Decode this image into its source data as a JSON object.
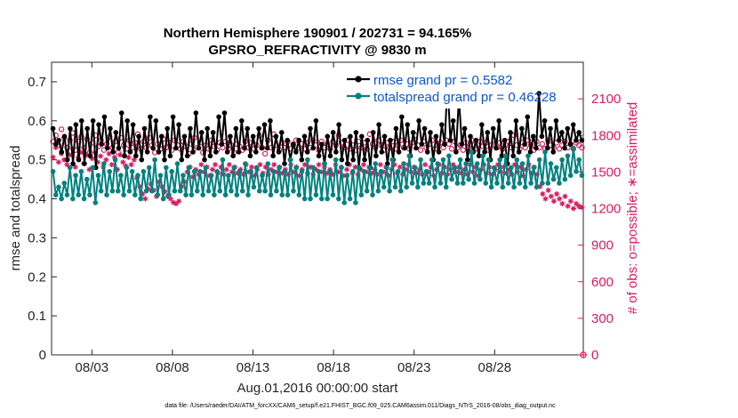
{
  "chart_data": {
    "type": "line",
    "title_line1": "Northern Hemisphere 190901 / 202731 = 94.165%",
    "title_line2": "GPSRO_REFRACTIVITY @ 9830 m",
    "xlabel": "Aug.01,2016 00:00:00 start",
    "ylabel_left": "rmse and totalspread",
    "ylabel_right": "# of obs: o=possible; ∗=assimilated",
    "footnote": "data file: /Users/raeder/DAI/ATM_forcXX/CAM6_setup/f.e21.FHIST_BGC.f09_025.CAM6assim.011/Diags_NTrS_2016-08/obs_diag_output.nc",
    "xlim": [
      0,
      33
    ],
    "ylim_left": [
      0,
      0.75
    ],
    "ylim_right": [
      0,
      2400
    ],
    "x_ticks": [
      {
        "value": 2.5,
        "label": "08/03"
      },
      {
        "value": 7.5,
        "label": "08/08"
      },
      {
        "value": 12.5,
        "label": "08/13"
      },
      {
        "value": 17.5,
        "label": "08/18"
      },
      {
        "value": 22.5,
        "label": "08/23"
      },
      {
        "value": 27.5,
        "label": "08/28"
      }
    ],
    "y_ticks_left": [
      {
        "value": 0,
        "label": "0"
      },
      {
        "value": 0.1,
        "label": "0.1"
      },
      {
        "value": 0.2,
        "label": "0.2"
      },
      {
        "value": 0.3,
        "label": "0.3"
      },
      {
        "value": 0.4,
        "label": "0.4"
      },
      {
        "value": 0.5,
        "label": "0.5"
      },
      {
        "value": 0.6,
        "label": "0.6"
      },
      {
        "value": 0.7,
        "label": "0.7"
      }
    ],
    "y_ticks_right": [
      {
        "value": 0,
        "label": "0"
      },
      {
        "value": 300,
        "label": "300"
      },
      {
        "value": 600,
        "label": "600"
      },
      {
        "value": 900,
        "label": "900"
      },
      {
        "value": 1200,
        "label": "1200"
      },
      {
        "value": 1500,
        "label": "1500"
      },
      {
        "value": 1800,
        "label": "1800"
      },
      {
        "value": 2100,
        "label": "2100"
      }
    ],
    "series": [
      {
        "name": "rmse",
        "legend": "rmse grand pr = 0.5582",
        "color": "#000000",
        "axis": "left",
        "marker": "dot",
        "values": [
          0.58,
          0.54,
          0.55,
          0.52,
          0.56,
          0.5,
          0.58,
          0.49,
          0.59,
          0.5,
          0.6,
          0.49,
          0.58,
          0.51,
          0.6,
          0.48,
          0.59,
          0.54,
          0.61,
          0.53,
          0.58,
          0.52,
          0.57,
          0.53,
          0.62,
          0.51,
          0.6,
          0.52,
          0.59,
          0.51,
          0.56,
          0.5,
          0.58,
          0.52,
          0.61,
          0.53,
          0.6,
          0.52,
          0.56,
          0.5,
          0.58,
          0.51,
          0.61,
          0.53,
          0.59,
          0.5,
          0.56,
          0.51,
          0.58,
          0.52,
          0.62,
          0.53,
          0.57,
          0.5,
          0.58,
          0.51,
          0.57,
          0.52,
          0.61,
          0.54,
          0.62,
          0.52,
          0.56,
          0.51,
          0.58,
          0.52,
          0.6,
          0.53,
          0.58,
          0.51,
          0.56,
          0.52,
          0.58,
          0.53,
          0.59,
          0.53,
          0.6,
          0.51,
          0.56,
          0.52,
          0.57,
          0.49,
          0.55,
          0.5,
          0.54,
          0.52,
          0.55,
          0.5,
          0.56,
          0.52,
          0.58,
          0.53,
          0.6,
          0.51,
          0.54,
          0.49,
          0.56,
          0.51,
          0.57,
          0.52,
          0.59,
          0.5,
          0.55,
          0.49,
          0.56,
          0.5,
          0.57,
          0.48,
          0.56,
          0.5,
          0.55,
          0.48,
          0.57,
          0.51,
          0.59,
          0.52,
          0.56,
          0.49,
          0.55,
          0.5,
          0.58,
          0.52,
          0.61,
          0.53,
          0.59,
          0.51,
          0.57,
          0.53,
          0.6,
          0.54,
          0.58,
          0.52,
          0.57,
          0.5,
          0.56,
          0.52,
          0.59,
          0.54,
          0.7,
          0.55,
          0.6,
          0.52,
          0.66,
          0.54,
          0.58,
          0.5,
          0.56,
          0.52,
          0.55,
          0.51,
          0.59,
          0.52,
          0.57,
          0.5,
          0.58,
          0.53,
          0.6,
          0.51,
          0.55,
          0.49,
          0.57,
          0.51,
          0.6,
          0.52,
          0.58,
          0.54,
          0.61,
          0.52,
          0.56,
          0.53,
          0.67,
          0.56,
          0.6,
          0.53,
          0.58,
          0.52,
          0.6,
          0.55,
          0.57,
          0.53,
          0.58,
          0.54,
          0.59,
          0.55,
          0.57,
          0.55
        ]
      },
      {
        "name": "totalspread",
        "legend": "totalspread grand pr = 0.46228",
        "color": "#00827f",
        "axis": "left",
        "marker": "dot",
        "values": [
          0.47,
          0.41,
          0.43,
          0.4,
          0.44,
          0.41,
          0.48,
          0.4,
          0.46,
          0.41,
          0.47,
          0.4,
          0.45,
          0.41,
          0.48,
          0.39,
          0.46,
          0.42,
          0.49,
          0.41,
          0.47,
          0.42,
          0.5,
          0.42,
          0.46,
          0.41,
          0.48,
          0.42,
          0.47,
          0.41,
          0.46,
          0.4,
          0.47,
          0.42,
          0.48,
          0.42,
          0.5,
          0.41,
          0.46,
          0.4,
          0.48,
          0.41,
          0.47,
          0.42,
          0.49,
          0.42,
          0.46,
          0.41,
          0.48,
          0.41,
          0.47,
          0.42,
          0.47,
          0.41,
          0.48,
          0.42,
          0.46,
          0.41,
          0.47,
          0.42,
          0.5,
          0.41,
          0.46,
          0.42,
          0.48,
          0.41,
          0.47,
          0.42,
          0.49,
          0.41,
          0.47,
          0.43,
          0.48,
          0.42,
          0.46,
          0.42,
          0.49,
          0.41,
          0.47,
          0.42,
          0.48,
          0.41,
          0.47,
          0.41,
          0.5,
          0.42,
          0.48,
          0.41,
          0.47,
          0.4,
          0.5,
          0.4,
          0.48,
          0.41,
          0.47,
          0.4,
          0.49,
          0.4,
          0.47,
          0.41,
          0.5,
          0.4,
          0.48,
          0.39,
          0.46,
          0.4,
          0.47,
          0.39,
          0.48,
          0.41,
          0.47,
          0.42,
          0.48,
          0.41,
          0.49,
          0.42,
          0.47,
          0.43,
          0.48,
          0.42,
          0.5,
          0.43,
          0.47,
          0.42,
          0.49,
          0.43,
          0.51,
          0.44,
          0.48,
          0.43,
          0.5,
          0.44,
          0.47,
          0.44,
          0.5,
          0.43,
          0.49,
          0.44,
          0.5,
          0.43,
          0.51,
          0.45,
          0.48,
          0.44,
          0.5,
          0.44,
          0.49,
          0.45,
          0.52,
          0.44,
          0.49,
          0.45,
          0.51,
          0.44,
          0.5,
          0.43,
          0.48,
          0.44,
          0.5,
          0.43,
          0.51,
          0.44,
          0.48,
          0.43,
          0.5,
          0.44,
          0.49,
          0.43,
          0.51,
          0.44,
          0.48,
          0.43,
          0.5,
          0.44,
          0.52,
          0.44,
          0.49,
          0.45,
          0.48,
          0.44,
          0.5,
          0.45,
          0.51,
          0.46,
          0.53,
          0.47,
          0.5,
          0.46
        ]
      },
      {
        "name": "obs_possible",
        "legend": "",
        "color": "#d81b60",
        "axis": "right",
        "marker": "circle",
        "values": [
          1750,
          1800,
          1720,
          1850,
          1780,
          1700,
          1760,
          1820,
          1680,
          1750,
          1790,
          1700,
          1770,
          1660,
          1740,
          1800,
          1710,
          1760,
          1680,
          1730,
          1790,
          1700,
          1750,
          1660,
          1780,
          1720,
          1690,
          1760,
          1700,
          1740,
          1810,
          1690,
          1750,
          1700,
          1780,
          1720,
          1660,
          1730,
          1690,
          1770,
          1700,
          1740,
          1680,
          1760,
          1720,
          1690,
          1750,
          1710,
          1650,
          1730,
          1780,
          1700,
          1740,
          1660,
          1720,
          1690,
          1760,
          1710,
          1680,
          1740,
          1700,
          1750,
          1690,
          1720,
          1660,
          1730,
          1710,
          1680,
          1750,
          1700,
          1740,
          1690,
          1720,
          1800,
          1700,
          1650,
          1760,
          1700,
          1810,
          1720,
          1680,
          1740,
          1700,
          1750,
          1690,
          1720,
          1760,
          1700,
          1730,
          1690,
          1740,
          1700,
          1760,
          1720,
          1680,
          1750,
          1700,
          1730,
          1690,
          1750,
          1720,
          1800,
          1740,
          1700,
          1760,
          1690,
          1720,
          1680,
          1750,
          1700,
          1740,
          1690,
          1810,
          1730,
          1700,
          1760,
          1720,
          1680,
          1740,
          1700,
          1750,
          1690,
          1720,
          1760,
          1700,
          1730,
          1690,
          1740,
          1800,
          1720,
          1680,
          1750,
          1700,
          1730,
          1760,
          1690,
          1720,
          1740,
          1700,
          1760,
          1730,
          1690,
          1750,
          1700,
          1720,
          1680,
          1740,
          1700,
          1760,
          1720,
          1690,
          1750,
          1710,
          1740,
          1680,
          1720,
          1760,
          1700,
          1740,
          1690,
          1720,
          1750,
          1700,
          1800,
          1720,
          1690,
          1740,
          1700,
          1760,
          1720,
          1680,
          1750,
          1700,
          1730,
          1690,
          1760,
          1720,
          1700,
          1740,
          1690,
          1720,
          1750,
          1700,
          1730,
          1690,
          1740,
          1720,
          1700
        ]
      },
      {
        "name": "obs_assimilated",
        "legend": "",
        "color": "#d81b60",
        "axis": "right",
        "marker": "asterisk",
        "values": [
          1620,
          1700,
          1580,
          1650,
          1600,
          1560,
          1640,
          1690,
          1540,
          1620,
          1660,
          1570,
          1640,
          1520,
          1610,
          1660,
          1580,
          1630,
          1540,
          1600,
          1650,
          1560,
          1620,
          1520,
          1640,
          1580,
          1550,
          1620,
          1560,
          1600,
          1450,
          1380,
          1320,
          1280,
          1360,
          1400,
          1350,
          1300,
          1420,
          1380,
          1340,
          1300,
          1280,
          1250,
          1240,
          1260,
          1380,
          1420,
          1500,
          1540,
          1460,
          1520,
          1480,
          1560,
          1500,
          1540,
          1470,
          1520,
          1560,
          1490,
          1540,
          1480,
          1520,
          1560,
          1500,
          1540,
          1490,
          1520,
          1480,
          1560,
          1500,
          1540,
          1470,
          1520,
          1560,
          1490,
          1540,
          1480,
          1520,
          1560,
          1500,
          1540,
          1490,
          1520,
          1480,
          1560,
          1500,
          1540,
          1470,
          1520,
          1560,
          1490,
          1540,
          1480,
          1520,
          1560,
          1500,
          1540,
          1490,
          1520,
          1480,
          1560,
          1500,
          1540,
          1470,
          1520,
          1560,
          1490,
          1540,
          1480,
          1520,
          1560,
          1500,
          1540,
          1490,
          1520,
          1480,
          1560,
          1500,
          1540,
          1470,
          1520,
          1560,
          1490,
          1540,
          1480,
          1520,
          1560,
          1500,
          1540,
          1490,
          1520,
          1480,
          1560,
          1500,
          1540,
          1470,
          1520,
          1560,
          1490,
          1540,
          1480,
          1520,
          1560,
          1500,
          1540,
          1490,
          1520,
          1480,
          1560,
          1500,
          1540,
          1470,
          1520,
          1560,
          1490,
          1540,
          1480,
          1520,
          1560,
          1500,
          1540,
          1490,
          1520,
          1480,
          1560,
          1500,
          1540,
          1470,
          1520,
          1560,
          1490,
          1540,
          1480,
          1380,
          1320,
          1280,
          1350,
          1300,
          1260,
          1320,
          1280,
          1240,
          1300,
          1220,
          1260,
          1200,
          1240,
          1220,
          1210
        ]
      }
    ],
    "right_axis_endpoint": {
      "possible": 0,
      "assimilated": 0
    }
  }
}
